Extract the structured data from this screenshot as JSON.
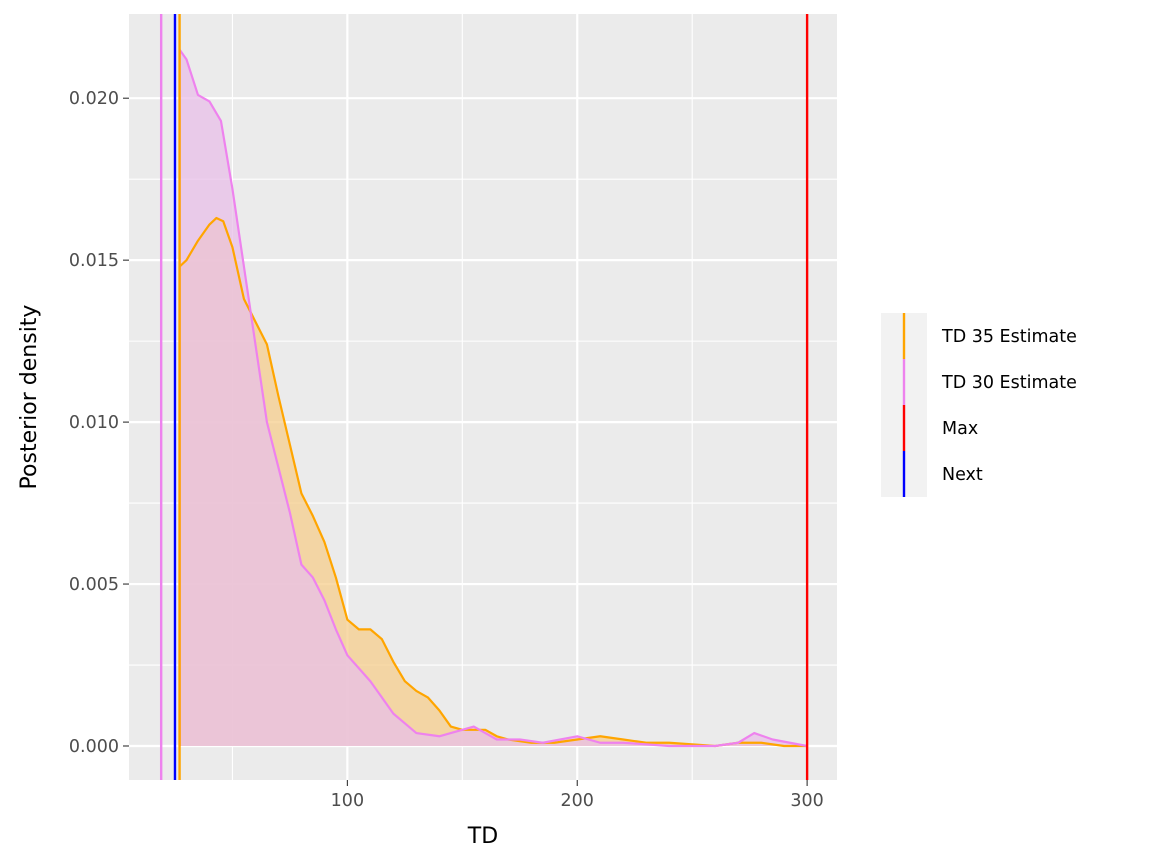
{
  "chart_data": {
    "type": "area",
    "xlabel": "TD",
    "ylabel": "Posterior density",
    "xlim": [
      5,
      313
    ],
    "ylim": [
      -0.00105,
      0.0226
    ],
    "x_ticks": [
      100,
      200,
      300
    ],
    "y_ticks": [
      0.0,
      0.005,
      0.01,
      0.015,
      0.02
    ],
    "x_tick_labels": [
      "100",
      "200",
      "300"
    ],
    "y_tick_labels": [
      "0.000",
      "0.005",
      "0.010",
      "0.015",
      "0.020"
    ],
    "grid": true,
    "legend_placement": "right",
    "series": [
      {
        "name": "TD 35 Estimate",
        "color": "#FFA500",
        "fill": "#F5CD8C",
        "points": [
          [
            27,
            0.0148
          ],
          [
            30,
            0.015
          ],
          [
            35,
            0.0156
          ],
          [
            40,
            0.0161
          ],
          [
            43,
            0.0163
          ],
          [
            46,
            0.0162
          ],
          [
            50,
            0.0154
          ],
          [
            55,
            0.0138
          ],
          [
            60,
            0.0131
          ],
          [
            65,
            0.0124
          ],
          [
            70,
            0.0108
          ],
          [
            75,
            0.0093
          ],
          [
            80,
            0.0078
          ],
          [
            85,
            0.0071
          ],
          [
            90,
            0.0063
          ],
          [
            95,
            0.0052
          ],
          [
            100,
            0.0039
          ],
          [
            105,
            0.0036
          ],
          [
            110,
            0.0036
          ],
          [
            115,
            0.0033
          ],
          [
            120,
            0.0026
          ],
          [
            125,
            0.002
          ],
          [
            130,
            0.0017
          ],
          [
            135,
            0.0015
          ],
          [
            140,
            0.0011
          ],
          [
            145,
            0.0006
          ],
          [
            150,
            0.0005
          ],
          [
            155,
            0.0005
          ],
          [
            160,
            0.0005
          ],
          [
            165,
            0.0003
          ],
          [
            170,
            0.0002
          ],
          [
            180,
            0.0001
          ],
          [
            190,
            0.0001
          ],
          [
            200,
            0.0002
          ],
          [
            210,
            0.0003
          ],
          [
            220,
            0.0002
          ],
          [
            230,
            0.0001
          ],
          [
            240,
            0.0001
          ],
          [
            260,
            0.0
          ],
          [
            270,
            0.0001
          ],
          [
            280,
            0.0001
          ],
          [
            290,
            0.0
          ],
          [
            300,
            0.0
          ]
        ]
      },
      {
        "name": "TD 30 Estimate",
        "color": "#EE82EE",
        "fill": "#E8BFE8",
        "points": [
          [
            27,
            0.0215
          ],
          [
            30,
            0.0212
          ],
          [
            35,
            0.0201
          ],
          [
            40,
            0.0199
          ],
          [
            45,
            0.0193
          ],
          [
            50,
            0.0172
          ],
          [
            55,
            0.0148
          ],
          [
            60,
            0.0124
          ],
          [
            65,
            0.01
          ],
          [
            70,
            0.0086
          ],
          [
            75,
            0.0072
          ],
          [
            80,
            0.0056
          ],
          [
            85,
            0.0052
          ],
          [
            90,
            0.0045
          ],
          [
            95,
            0.0036
          ],
          [
            100,
            0.0028
          ],
          [
            105,
            0.0024
          ],
          [
            110,
            0.002
          ],
          [
            115,
            0.0015
          ],
          [
            120,
            0.001
          ],
          [
            125,
            0.0007
          ],
          [
            130,
            0.0004
          ],
          [
            140,
            0.0003
          ],
          [
            150,
            0.0005
          ],
          [
            155,
            0.0006
          ],
          [
            160,
            0.0004
          ],
          [
            165,
            0.0002
          ],
          [
            175,
            0.0002
          ],
          [
            185,
            0.0001
          ],
          [
            200,
            0.0003
          ],
          [
            210,
            0.0001
          ],
          [
            220,
            0.0001
          ],
          [
            240,
            0.0
          ],
          [
            260,
            0.0
          ],
          [
            270,
            0.0001
          ],
          [
            277,
            0.0004
          ],
          [
            285,
            0.0002
          ],
          [
            300,
            0.0
          ]
        ]
      }
    ],
    "vertical_lines": [
      {
        "name": "TD 35 Estimate",
        "x": 27,
        "color": "#FFA500"
      },
      {
        "name": "TD 30 Estimate",
        "x": 19,
        "color": "#EE82EE"
      },
      {
        "name": "Max",
        "x": 300,
        "color": "#FF0000"
      },
      {
        "name": "Next",
        "x": 25,
        "color": "#0000FF"
      }
    ],
    "legend": [
      {
        "label": "TD 35 Estimate",
        "color": "#FFA500"
      },
      {
        "label": "TD 30 Estimate",
        "color": "#EE82EE"
      },
      {
        "label": "Max",
        "color": "#FF0000"
      },
      {
        "label": "Next",
        "color": "#0000FF"
      }
    ]
  }
}
